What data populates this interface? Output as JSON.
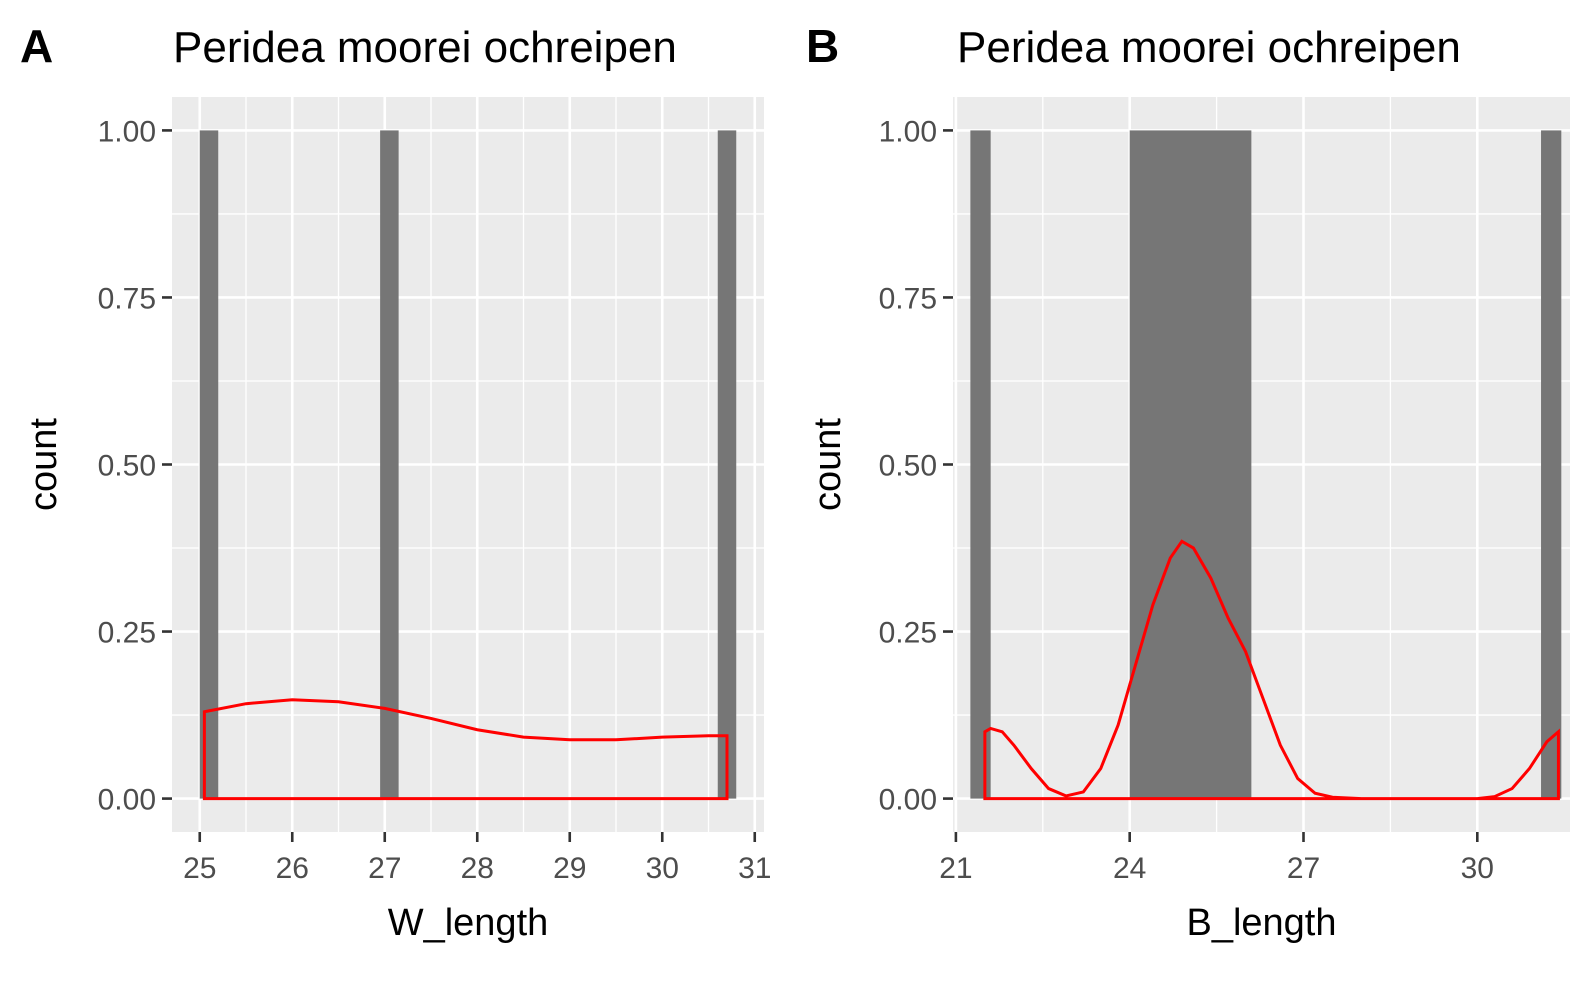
{
  "chart_data": [
    {
      "type": "bar",
      "panel": "A",
      "title": "Peridea moorei ochreipen",
      "xlabel": "W_length",
      "ylabel": "count",
      "xlim": [
        24.7,
        31.1
      ],
      "ylim": [
        -0.05,
        1.05
      ],
      "x_ticks": [
        25,
        26,
        27,
        28,
        29,
        30,
        31
      ],
      "x_tick_labels": [
        "25",
        "26",
        "27",
        "28",
        "29",
        "30",
        "31"
      ],
      "y_ticks": [
        0,
        0.25,
        0.5,
        0.75,
        1
      ],
      "y_tick_labels": [
        "0.00",
        "0.25",
        "0.50",
        "0.75",
        "1.00"
      ],
      "grid": true,
      "bar_color": "#767676",
      "density_color": "#ff0000",
      "bars": [
        {
          "xmin": 25.0,
          "xmax": 25.2,
          "count": 1
        },
        {
          "xmin": 26.95,
          "xmax": 27.15,
          "count": 1
        },
        {
          "xmin": 30.6,
          "xmax": 30.8,
          "count": 1
        }
      ],
      "density": {
        "x": [
          25.05,
          25.5,
          26.0,
          26.5,
          27.0,
          27.5,
          28.0,
          28.5,
          29.0,
          29.5,
          30.0,
          30.5,
          30.7
        ],
        "y": [
          0.13,
          0.142,
          0.148,
          0.145,
          0.135,
          0.12,
          0.103,
          0.092,
          0.088,
          0.088,
          0.092,
          0.094,
          0.094
        ]
      }
    },
    {
      "type": "bar",
      "panel": "B",
      "title": "Peridea moorei ochreipen",
      "xlabel": "B_length",
      "ylabel": "count",
      "xlim": [
        20.95,
        31.6
      ],
      "ylim": [
        -0.05,
        1.05
      ],
      "x_ticks": [
        21,
        24,
        27,
        30
      ],
      "x_tick_labels": [
        "21",
        "24",
        "27",
        "30"
      ],
      "y_ticks": [
        0,
        0.25,
        0.5,
        0.75,
        1
      ],
      "y_tick_labels": [
        "0.00",
        "0.25",
        "0.50",
        "0.75",
        "1.00"
      ],
      "grid": true,
      "bar_color": "#767676",
      "density_color": "#ff0000",
      "bars": [
        {
          "xmin": 21.25,
          "xmax": 21.6,
          "count": 1
        },
        {
          "xmin": 24.0,
          "xmax": 26.1,
          "count": 1
        },
        {
          "xmin": 31.1,
          "xmax": 31.45,
          "count": 1
        }
      ],
      "density": {
        "x": [
          21.5,
          21.6,
          21.8,
          22.0,
          22.3,
          22.6,
          22.9,
          23.2,
          23.5,
          23.8,
          24.1,
          24.4,
          24.7,
          24.9,
          25.1,
          25.4,
          25.7,
          26.0,
          26.3,
          26.6,
          26.9,
          27.2,
          27.5,
          28.0,
          29.0,
          30.0,
          30.3,
          30.6,
          30.9,
          31.2,
          31.4
        ],
        "y": [
          0.1,
          0.105,
          0.1,
          0.08,
          0.045,
          0.015,
          0.004,
          0.01,
          0.045,
          0.11,
          0.2,
          0.29,
          0.36,
          0.385,
          0.375,
          0.33,
          0.27,
          0.22,
          0.15,
          0.08,
          0.03,
          0.008,
          0.002,
          0.0,
          0.0,
          0.0,
          0.003,
          0.015,
          0.045,
          0.085,
          0.1
        ]
      }
    }
  ]
}
